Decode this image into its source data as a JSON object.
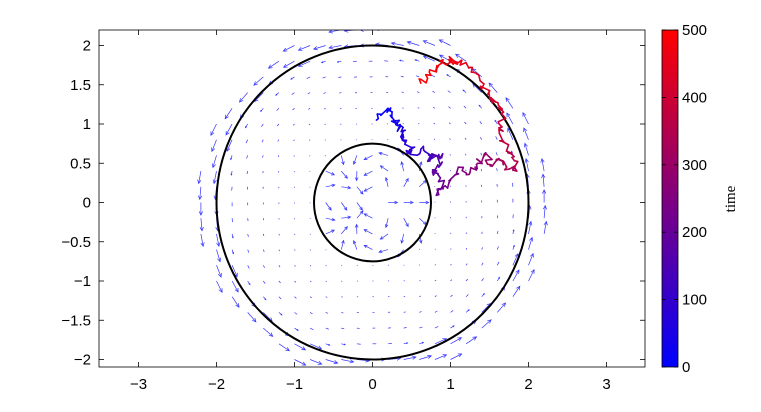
{
  "chart_data": {
    "type": "line",
    "title": "",
    "xlabel": "",
    "ylabel": "",
    "xlim": [
      -3.5,
      3.6
    ],
    "ylim": [
      -2.1,
      2.2
    ],
    "xticks": [
      -3,
      -2,
      -1,
      0,
      1,
      2,
      3
    ],
    "yticks": [
      -2,
      -1.5,
      -1,
      -0.5,
      0,
      0.5,
      1,
      1.5,
      2
    ],
    "xtick_labels": [
      "−3",
      "−2",
      "−1",
      "0",
      "1",
      "2",
      "3"
    ],
    "ytick_labels": [
      "−2",
      "−1.5",
      "−1",
      "−0.5",
      "0",
      "0.5",
      "1",
      "1.5",
      "2"
    ],
    "circles": [
      {
        "cx": 0,
        "cy": 0,
        "r": 0.75,
        "color": "#000000"
      },
      {
        "cx": 0,
        "cy": 0,
        "r": 2.0,
        "color": "#000000"
      }
    ],
    "vector_field": {
      "color": "#3333ff",
      "description_of_flow": "counter-clockwise rotation, arrow length growing with radius"
    },
    "trajectory": {
      "color_by": "time",
      "time_range": [
        0,
        500
      ],
      "points": [
        {
          "t": 0,
          "x": 0.05,
          "y": 1.05
        },
        {
          "t": 10,
          "x": 0.2,
          "y": 1.2
        },
        {
          "t": 20,
          "x": 0.25,
          "y": 1.08
        },
        {
          "t": 35,
          "x": 0.32,
          "y": 0.98
        },
        {
          "t": 50,
          "x": 0.42,
          "y": 0.92
        },
        {
          "t": 65,
          "x": 0.38,
          "y": 0.8
        },
        {
          "t": 80,
          "x": 0.5,
          "y": 0.7
        },
        {
          "t": 95,
          "x": 0.45,
          "y": 0.62
        },
        {
          "t": 110,
          "x": 0.62,
          "y": 0.68
        },
        {
          "t": 125,
          "x": 0.78,
          "y": 0.6
        },
        {
          "t": 140,
          "x": 0.72,
          "y": 0.55
        },
        {
          "t": 155,
          "x": 0.9,
          "y": 0.62
        },
        {
          "t": 170,
          "x": 0.85,
          "y": 0.45
        },
        {
          "t": 185,
          "x": 0.78,
          "y": 0.35
        },
        {
          "t": 200,
          "x": 0.92,
          "y": 0.28
        },
        {
          "t": 215,
          "x": 0.85,
          "y": 0.1
        },
        {
          "t": 230,
          "x": 0.98,
          "y": 0.25
        },
        {
          "t": 245,
          "x": 1.1,
          "y": 0.45
        },
        {
          "t": 260,
          "x": 1.25,
          "y": 0.38
        },
        {
          "t": 275,
          "x": 1.35,
          "y": 0.5
        },
        {
          "t": 290,
          "x": 1.45,
          "y": 0.62
        },
        {
          "t": 305,
          "x": 1.52,
          "y": 0.48
        },
        {
          "t": 320,
          "x": 1.62,
          "y": 0.55
        },
        {
          "t": 335,
          "x": 1.72,
          "y": 0.45
        },
        {
          "t": 350,
          "x": 1.85,
          "y": 0.4
        },
        {
          "t": 360,
          "x": 1.78,
          "y": 0.62
        },
        {
          "t": 372,
          "x": 1.68,
          "y": 0.78
        },
        {
          "t": 385,
          "x": 1.62,
          "y": 0.95
        },
        {
          "t": 398,
          "x": 1.68,
          "y": 1.15
        },
        {
          "t": 410,
          "x": 1.58,
          "y": 1.28
        },
        {
          "t": 422,
          "x": 1.48,
          "y": 1.38
        },
        {
          "t": 435,
          "x": 1.38,
          "y": 1.55
        },
        {
          "t": 448,
          "x": 1.25,
          "y": 1.72
        },
        {
          "t": 458,
          "x": 1.1,
          "y": 1.78
        },
        {
          "t": 468,
          "x": 0.98,
          "y": 1.82
        },
        {
          "t": 478,
          "x": 0.85,
          "y": 1.75
        },
        {
          "t": 488,
          "x": 0.75,
          "y": 1.62
        },
        {
          "t": 500,
          "x": 0.62,
          "y": 1.52
        }
      ]
    },
    "colorbar": {
      "label": "time",
      "min": 0,
      "max": 500,
      "ticks": [
        0,
        100,
        200,
        300,
        400,
        500
      ],
      "tick_labels": [
        "0",
        "100",
        "200",
        "300",
        "400",
        "500"
      ],
      "color_low": "#0000ff",
      "color_high": "#ff0000"
    },
    "grid": false,
    "legend": "none"
  }
}
